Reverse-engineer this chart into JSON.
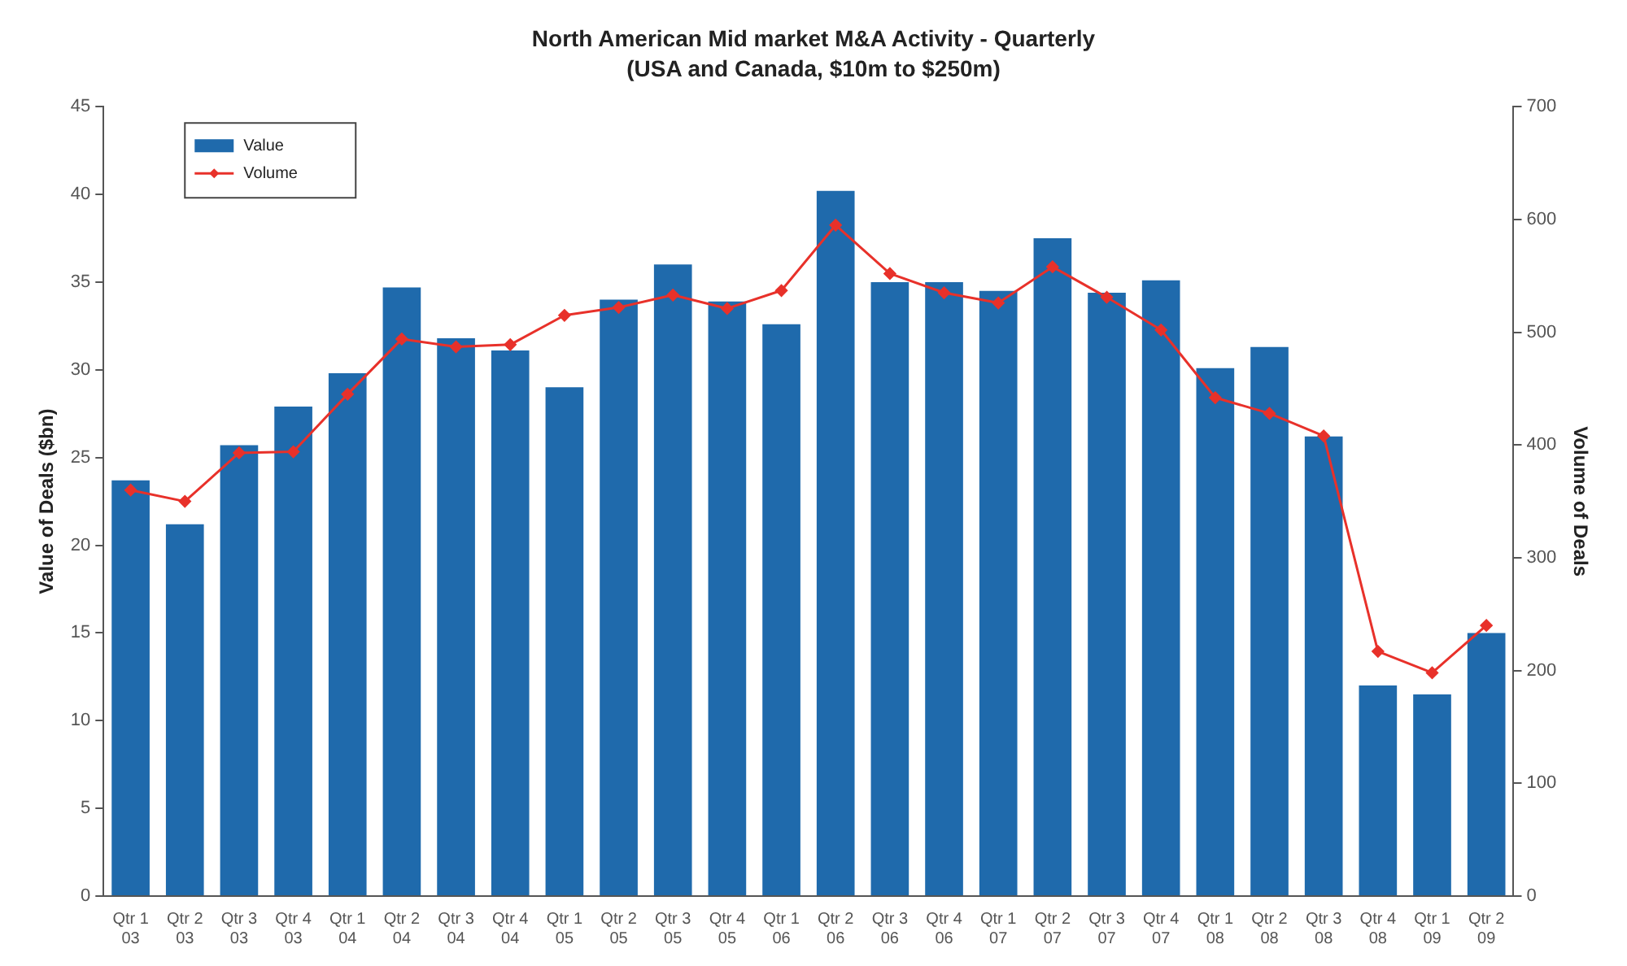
{
  "chart_data": {
    "type": "bar",
    "title": "North American Mid market M&A Activity - Quarterly",
    "subtitle": "(USA and Canada, $10m to $250m)",
    "ylabel": "Value of Deals ($bn)",
    "y2label": "Volume of Deals",
    "categories": [
      "Qtr 1\n03",
      "Qtr 2\n03",
      "Qtr 3\n03",
      "Qtr 4\n03",
      "Qtr 1\n04",
      "Qtr 2\n04",
      "Qtr 3\n04",
      "Qtr 4\n04",
      "Qtr 1\n05",
      "Qtr 2\n05",
      "Qtr 3\n05",
      "Qtr 4\n05",
      "Qtr 1\n06",
      "Qtr 2\n06",
      "Qtr 3\n06",
      "Qtr 4\n06",
      "Qtr 1\n07",
      "Qtr 2\n07",
      "Qtr 3\n07",
      "Qtr 4\n07",
      "Qtr 1\n08",
      "Qtr 2\n08",
      "Qtr 3\n08",
      "Qtr 4\n08",
      "Qtr 1\n09",
      "Qtr 2\n09"
    ],
    "series": [
      {
        "name": "Value",
        "color": "#1f6aac",
        "values": [
          23.7,
          21.2,
          25.7,
          27.9,
          29.8,
          34.7,
          31.8,
          31.1,
          29.0,
          34.0,
          36.0,
          33.9,
          32.6,
          40.2,
          35.0,
          35.0,
          34.5,
          37.5,
          34.4,
          35.1,
          30.1,
          31.3,
          26.2,
          12.0,
          11.5,
          15.0
        ]
      },
      {
        "name": "Volume",
        "type": "line",
        "axis": "y2",
        "color": "#e8312a",
        "marker": "diamond",
        "values": [
          360,
          350,
          393,
          394,
          445,
          494,
          487,
          489,
          515,
          522,
          533,
          521,
          537,
          595,
          552,
          535,
          526,
          558,
          531,
          502,
          442,
          428,
          408,
          217,
          198,
          240
        ]
      }
    ],
    "ylim": [
      0,
      45
    ],
    "yticks": [
      0,
      5,
      10,
      15,
      20,
      25,
      30,
      35,
      40,
      45
    ],
    "y2lim": [
      0,
      700
    ],
    "y2ticks": [
      0,
      100,
      200,
      300,
      400,
      500,
      600,
      700
    ],
    "grid": false,
    "legend": "top left"
  }
}
